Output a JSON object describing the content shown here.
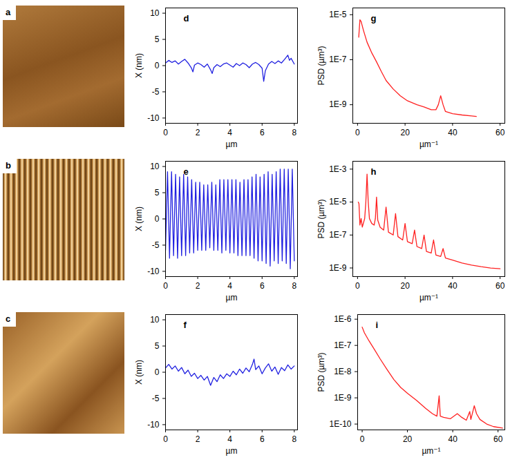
{
  "images": [
    "a",
    "b",
    "c"
  ],
  "chart_data": [
    {
      "type": "line",
      "title": "d",
      "x_label": "µm",
      "y_label": "X (nm)",
      "color": "#2020e0",
      "xlim": [
        0,
        8.2
      ],
      "xticks": [
        0,
        2,
        4,
        6,
        8
      ],
      "ylim": [
        -11,
        11
      ],
      "yticks": [
        -10,
        -5,
        0,
        5,
        10
      ],
      "x": [
        0,
        0.2,
        0.4,
        0.6,
        0.8,
        1.0,
        1.2,
        1.4,
        1.6,
        1.7,
        1.8,
        2.0,
        2.2,
        2.4,
        2.6,
        2.8,
        2.9,
        3.0,
        3.2,
        3.4,
        3.6,
        3.8,
        4.0,
        4.2,
        4.4,
        4.6,
        4.8,
        5.0,
        5.2,
        5.4,
        5.6,
        5.8,
        6.0,
        6.1,
        6.2,
        6.4,
        6.6,
        6.8,
        7.0,
        7.2,
        7.4,
        7.6,
        7.7,
        7.8,
        8.0
      ],
      "values": [
        0.5,
        1.0,
        0.6,
        0.9,
        0.3,
        0.8,
        1.2,
        0.5,
        -0.4,
        -1.2,
        0.1,
        0.5,
        0.2,
        -0.3,
        0.3,
        -0.8,
        -1.5,
        -0.4,
        0.2,
        -0.2,
        0.3,
        0.5,
        0.1,
        -0.3,
        0.4,
        0,
        0.5,
        0.2,
        -0.4,
        0.3,
        0.6,
        0.2,
        -0.5,
        -3.0,
        -1.0,
        0.3,
        0.8,
        0.4,
        0.9,
        0.5,
        1.2,
        2.0,
        1.0,
        1.4,
        0.3
      ]
    },
    {
      "type": "line",
      "title": "e",
      "x_label": "µm",
      "y_label": "X (nm)",
      "color": "#2020e0",
      "xlim": [
        0,
        8.2
      ],
      "xticks": [
        0,
        2,
        4,
        6,
        8
      ],
      "ylim": [
        -11,
        11
      ],
      "yticks": [
        -10,
        -5,
        0,
        5,
        10
      ],
      "x": [
        0,
        0.125,
        0.25,
        0.375,
        0.5,
        0.625,
        0.75,
        0.875,
        1.0,
        1.125,
        1.25,
        1.375,
        1.5,
        1.625,
        1.75,
        1.875,
        2.0,
        2.125,
        2.25,
        2.375,
        2.5,
        2.625,
        2.75,
        2.875,
        3.0,
        3.125,
        3.25,
        3.375,
        3.5,
        3.625,
        3.75,
        3.875,
        4.0,
        4.125,
        4.25,
        4.375,
        4.5,
        4.625,
        4.75,
        4.875,
        5.0,
        5.125,
        5.25,
        5.375,
        5.5,
        5.625,
        5.75,
        5.875,
        6.0,
        6.125,
        6.25,
        6.375,
        6.5,
        6.625,
        6.75,
        6.875,
        7.0,
        7.125,
        7.25,
        7.375,
        7.5,
        7.625,
        7.75,
        7.875,
        8.0
      ],
      "values": [
        -6,
        9,
        -7.5,
        9,
        -7,
        8.5,
        -7.5,
        8,
        -7,
        8.5,
        -7,
        8,
        -6.5,
        7.5,
        -6.5,
        7,
        -6,
        7,
        -6,
        6.5,
        -6,
        6.5,
        -5.5,
        7,
        -6,
        6.5,
        -6,
        7.5,
        -6.5,
        7.5,
        -6,
        7.5,
        -6.5,
        7.5,
        -6.5,
        7.5,
        -7,
        7,
        -7,
        7.5,
        -7,
        7.5,
        -7,
        8,
        -7.5,
        8.5,
        -8,
        8,
        -8,
        8.5,
        -8.5,
        9,
        -9,
        8.5,
        -8,
        9,
        -8.5,
        9.5,
        -8,
        9.5,
        -8.5,
        9.5,
        -9.5,
        9.5,
        -8
      ]
    },
    {
      "type": "line",
      "title": "f",
      "x_label": "µm",
      "y_label": "X (nm)",
      "color": "#2020e0",
      "xlim": [
        0,
        8.2
      ],
      "xticks": [
        0,
        2,
        4,
        6,
        8
      ],
      "ylim": [
        -11,
        11
      ],
      "yticks": [
        -10,
        -5,
        0,
        5,
        10
      ],
      "x": [
        0,
        0.2,
        0.4,
        0.6,
        0.8,
        1.0,
        1.2,
        1.4,
        1.6,
        1.8,
        2.0,
        2.2,
        2.4,
        2.6,
        2.8,
        3.0,
        3.2,
        3.4,
        3.6,
        3.8,
        4.0,
        4.2,
        4.4,
        4.6,
        4.8,
        5.0,
        5.2,
        5.4,
        5.5,
        5.6,
        5.8,
        6.0,
        6.2,
        6.4,
        6.6,
        6.8,
        7.0,
        7.2,
        7.4,
        7.6,
        7.8,
        8.0
      ],
      "values": [
        0.8,
        1.5,
        0.6,
        1.2,
        0.2,
        0.9,
        -0.3,
        0.4,
        -0.8,
        -0.2,
        -1.2,
        -0.6,
        -1.5,
        -0.8,
        -2.5,
        -1.0,
        -1.8,
        -0.5,
        -1.2,
        -0.3,
        -0.8,
        0.2,
        -0.5,
        0.6,
        -0.2,
        0.8,
        0.1,
        1.5,
        2.5,
        0.5,
        1.2,
        -0.3,
        0.8,
        1.6,
        0.2,
        1.0,
        -0.4,
        0.9,
        0.3,
        1.4,
        0.6,
        1.2
      ]
    },
    {
      "type": "line",
      "title": "g",
      "x_label": "µm⁻¹",
      "y_label": "PSD (µm³)",
      "color": "#ff2020",
      "log": "y",
      "xlim": [
        -2,
        62
      ],
      "xticks": [
        0,
        20,
        40,
        60
      ],
      "ylim": [
        1.5e-10,
        2e-05
      ],
      "yticks": [
        {
          "value": 1e-05,
          "label": "1E-5"
        },
        {
          "value": 1e-07,
          "label": "1E-7"
        },
        {
          "value": 1e-09,
          "label": "1E-9"
        }
      ],
      "x": [
        0.5,
        1,
        1.5,
        2.5,
        4,
        6,
        8,
        10,
        12,
        15,
        18,
        21,
        25,
        28,
        31,
        33,
        34,
        35,
        36,
        37,
        40,
        44,
        48,
        50
      ],
      "values": [
        1e-06,
        6e-06,
        5e-06,
        2e-06,
        6e-07,
        2e-07,
        8e-08,
        3e-08,
        1.2e-08,
        5e-09,
        2.5e-09,
        1.5e-09,
        1e-09,
        8e-10,
        6e-10,
        6e-10,
        1e-09,
        2.5e-09,
        1e-09,
        5e-10,
        4e-10,
        3.5e-10,
        3.2e-10,
        3e-10
      ]
    },
    {
      "type": "line",
      "title": "h",
      "x_label": "µm⁻¹",
      "y_label": "PSD (µm³)",
      "color": "#ff2020",
      "log": "y",
      "xlim": [
        -2,
        62
      ],
      "xticks": [
        0,
        20,
        40,
        60
      ],
      "ylim": [
        3e-10,
        0.003
      ],
      "yticks": [
        {
          "value": 0.001,
          "label": "1E-3"
        },
        {
          "value": 1e-05,
          "label": "1E-5"
        },
        {
          "value": 1e-07,
          "label": "1E-7"
        },
        {
          "value": 1e-09,
          "label": "1E-9"
        }
      ],
      "x": [
        0.3,
        0.6,
        1,
        1.5,
        2,
        3,
        3.5,
        4,
        4.5,
        5,
        6,
        7,
        7.5,
        8,
        8.5,
        9.5,
        11,
        12,
        13,
        15,
        16,
        17,
        19,
        20,
        21,
        23,
        24,
        25,
        27,
        28,
        29,
        31,
        32,
        33,
        35,
        36,
        37,
        40,
        44,
        48,
        52,
        56,
        60
      ],
      "values": [
        1e-05,
        8e-06,
        4e-07,
        1e-06,
        3e-07,
        1e-06,
        1e-05,
        0.0005,
        1e-05,
        1e-06,
        5e-07,
        4e-07,
        1e-06,
        2e-05,
        8e-07,
        3e-07,
        2e-07,
        5e-06,
        1.5e-07,
        1e-07,
        2e-06,
        8e-08,
        5e-08,
        5e-07,
        4e-08,
        3e-08,
        2e-07,
        2e-08,
        1.5e-08,
        1e-07,
        1e-08,
        8e-09,
        5e-08,
        6e-09,
        5e-09,
        1.5e-08,
        4e-09,
        3e-09,
        2e-09,
        1.5e-09,
        1.2e-09,
        1e-09,
        9e-10
      ]
    },
    {
      "type": "line",
      "title": "i",
      "x_label": "µm⁻¹",
      "y_label": "PSD (µm³)",
      "color": "#ff2020",
      "log": "y",
      "xlim": [
        -2,
        63
      ],
      "xticks": [
        0,
        20,
        40,
        60
      ],
      "ylim": [
        6e-11,
        1.5e-06
      ],
      "yticks": [
        {
          "value": 1e-06,
          "label": "1E-6"
        },
        {
          "value": 1e-07,
          "label": "1E-7"
        },
        {
          "value": 1e-08,
          "label": "1E-8"
        },
        {
          "value": 1e-09,
          "label": "1E-9"
        },
        {
          "value": 1e-10,
          "label": "1E-10"
        }
      ],
      "x": [
        0,
        1,
        3,
        5,
        8,
        11,
        14,
        17,
        20,
        24,
        28,
        31,
        33,
        34,
        34.5,
        36,
        39,
        42,
        44,
        46,
        47.5,
        48,
        49.5,
        50.5,
        52,
        55,
        58,
        62
      ],
      "values": [
        5e-07,
        3e-07,
        1.5e-07,
        8e-08,
        3e-08,
        1.2e-08,
        5e-09,
        2.5e-09,
        1.5e-09,
        8e-10,
        4e-10,
        2.5e-10,
        2e-10,
        1.2e-09,
        2e-10,
        1.8e-10,
        1.6e-10,
        2.5e-10,
        1.8e-10,
        1.4e-10,
        3e-10,
        1.5e-10,
        5e-10,
        2.5e-10,
        1.5e-10,
        1e-10,
        8e-11,
        7e-11
      ]
    }
  ]
}
